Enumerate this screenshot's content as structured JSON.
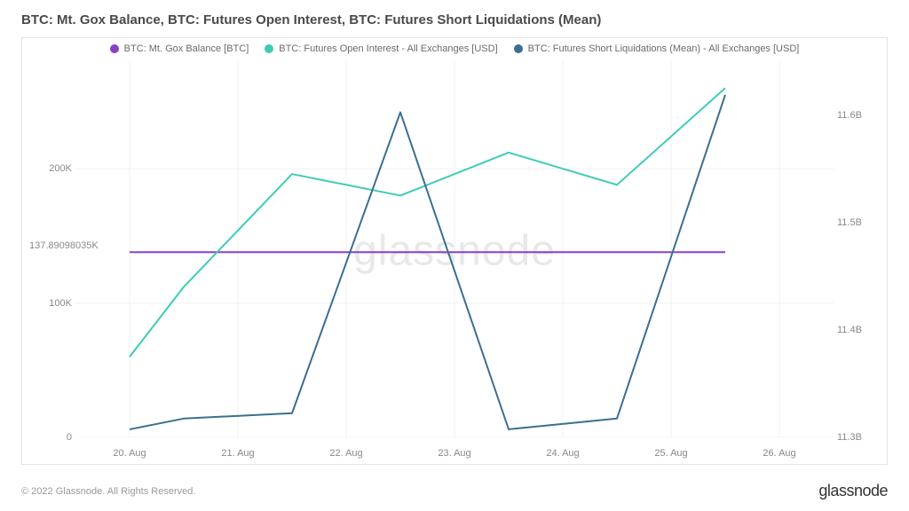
{
  "title": "BTC: Mt. Gox Balance, BTC: Futures Open Interest, BTC: Futures Short Liquidations (Mean)",
  "watermark": "glassnode",
  "copyright": "© 2022 Glassnode. All Rights Reserved.",
  "brand": "glassnode",
  "chart": {
    "type": "line",
    "background_color": "#ffffff",
    "border_color": "#e5e5e5",
    "grid_color": "#f0f0f0",
    "text_color": "#888888",
    "title_color": "#4a4a4a",
    "title_fontsize": 15,
    "label_fontsize": 11,
    "line_width": 2,
    "x": {
      "categories": [
        "20. Aug",
        "21. Aug",
        "22. Aug",
        "23. Aug",
        "24. Aug",
        "25. Aug",
        "26. Aug"
      ],
      "data_start_offset": 0.5
    },
    "y_left": {
      "min": 0,
      "max": 280000,
      "ticks": [
        0,
        100000,
        200000
      ],
      "tick_labels": [
        "0",
        "100K",
        "200K"
      ]
    },
    "y_right": {
      "min": 11.3,
      "max": 11.65,
      "ticks": [
        11.3,
        11.4,
        11.5,
        11.6
      ],
      "tick_labels": [
        "11.3B",
        "11.4B",
        "11.5B",
        "11.6B"
      ]
    },
    "annotation": {
      "label": "137.89098035K",
      "y_value": 137890.98035,
      "axis": "left"
    },
    "series": [
      {
        "name": "BTC: Mt. Gox Balance [BTC]",
        "color": "#8b3fc7",
        "axis": "left",
        "x_indices": [
          0.5,
          1,
          2,
          3,
          4,
          5,
          6
        ],
        "values": [
          137891,
          137891,
          137891,
          137891,
          137891,
          137891,
          137891
        ]
      },
      {
        "name": "BTC: Futures Open Interest - All Exchanges [USD]",
        "color": "#3dccb4",
        "axis": "right",
        "x_indices": [
          0.5,
          1,
          2,
          3,
          4,
          5,
          6
        ],
        "values": [
          11.375,
          11.44,
          11.545,
          11.525,
          11.565,
          11.535,
          11.625
        ]
      },
      {
        "name": "BTC: Futures Short Liquidations (Mean) - All Exchanges [USD]",
        "color": "#3a6f8f",
        "axis": "left",
        "x_indices": [
          0.5,
          1,
          2,
          3,
          4,
          5,
          6
        ],
        "values": [
          6000,
          14000,
          18000,
          242000,
          6000,
          14000,
          255000
        ]
      }
    ]
  }
}
